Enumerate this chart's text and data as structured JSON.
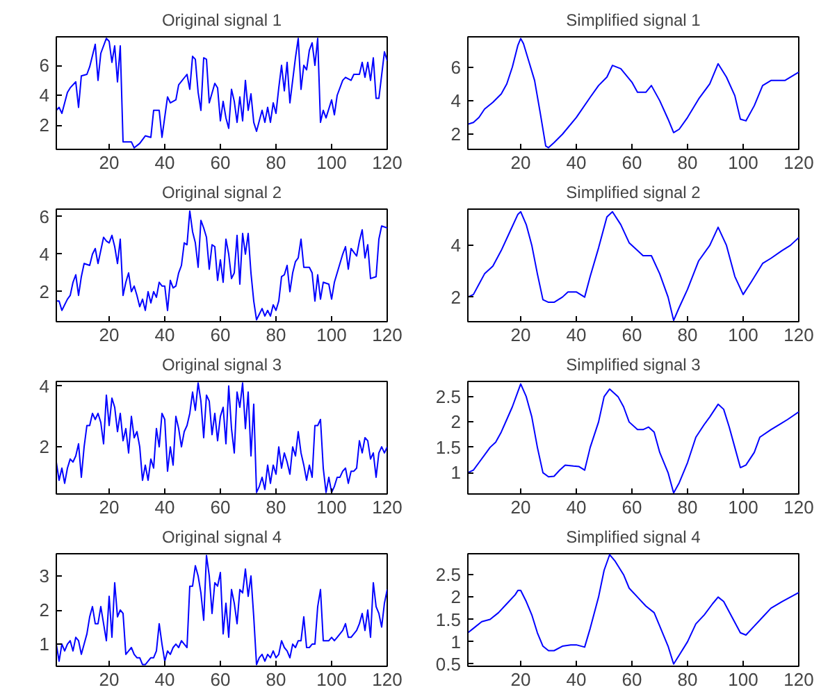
{
  "chart_data": [
    {
      "type": "line",
      "title": "Original signal 1",
      "color": "#0000ff",
      "xlim": [
        1,
        120
      ],
      "xticks": [
        20,
        40,
        60,
        80,
        100,
        120
      ],
      "ylim": [
        0.4,
        7.9
      ],
      "yticks": [
        2,
        4,
        6
      ],
      "x": [
        1,
        2,
        3,
        5,
        6,
        8,
        9,
        10,
        12,
        13,
        15,
        16,
        17,
        19,
        20,
        21,
        22,
        23,
        24,
        25,
        28,
        29,
        31,
        33,
        35,
        36,
        38,
        39,
        41,
        42,
        44,
        45,
        48,
        49,
        50,
        51,
        52,
        53,
        54,
        55,
        56,
        58,
        59,
        60,
        61,
        62,
        63,
        64,
        65,
        66,
        67,
        68,
        69,
        70,
        71,
        72,
        73,
        75,
        76,
        77,
        78,
        79,
        80,
        81,
        82,
        83,
        84,
        85,
        86,
        87,
        88,
        89,
        90,
        91,
        92,
        93,
        94,
        95,
        96,
        97,
        98,
        100,
        101,
        102,
        104,
        105,
        107,
        108,
        110,
        111,
        112,
        113,
        114,
        115,
        116,
        117,
        119,
        120
      ],
      "values": [
        3.0,
        3.2,
        2.8,
        4.2,
        4.5,
        4.9,
        3.2,
        5.3,
        5.4,
        5.9,
        7.4,
        5.0,
        6.8,
        7.8,
        7.6,
        6.2,
        7.3,
        4.9,
        7.3,
        0.9,
        0.9,
        0.5,
        0.8,
        1.3,
        1.2,
        3.0,
        3.0,
        1.2,
        3.9,
        3.5,
        3.7,
        4.7,
        5.4,
        4.4,
        6.6,
        6.4,
        4.2,
        3.0,
        6.5,
        6.4,
        3.5,
        4.8,
        4.5,
        2.3,
        3.6,
        2.5,
        1.8,
        4.4,
        3.6,
        2.2,
        3.9,
        2.3,
        5.0,
        3.0,
        4.1,
        2.2,
        1.6,
        3.0,
        2.2,
        3.2,
        2.2,
        3.5,
        2.8,
        4.5,
        6.0,
        4.3,
        6.2,
        3.5,
        5.0,
        6.5,
        7.8,
        4.4,
        6.0,
        5.7,
        7.0,
        7.5,
        6.0,
        7.8,
        2.2,
        3.0,
        2.5,
        3.7,
        2.7,
        4.0,
        5.0,
        5.2,
        5.0,
        5.4,
        5.4,
        6.2,
        5.2,
        6.2,
        5.0,
        6.5,
        3.8,
        3.8,
        6.9,
        6.3
      ]
    },
    {
      "type": "line",
      "title": "Simplified signal 1",
      "color": "#0000ff",
      "xlim": [
        1,
        120
      ],
      "xticks": [
        20,
        40,
        60,
        80,
        100,
        120
      ],
      "ylim": [
        1.1,
        7.8
      ],
      "yticks": [
        2,
        4,
        6
      ],
      "x": [
        1,
        3,
        5,
        7,
        10,
        13,
        15,
        17,
        19,
        20,
        21,
        23,
        25,
        27,
        29,
        30,
        32,
        35,
        40,
        45,
        48,
        51,
        53,
        56,
        60,
        62,
        65,
        67,
        70,
        73,
        75,
        77,
        80,
        84,
        88,
        91,
        94,
        97,
        99,
        101,
        104,
        107,
        110,
        115,
        118,
        120
      ],
      "values": [
        2.6,
        2.7,
        3.0,
        3.5,
        3.9,
        4.4,
        5.0,
        6.0,
        7.3,
        7.7,
        7.4,
        6.3,
        5.2,
        3.3,
        1.3,
        1.2,
        1.5,
        2.0,
        3.0,
        4.2,
        4.9,
        5.4,
        6.1,
        5.9,
        5.1,
        4.5,
        4.5,
        4.9,
        4.0,
        2.9,
        2.1,
        2.3,
        3.0,
        4.1,
        5.0,
        6.2,
        5.4,
        4.3,
        2.9,
        2.8,
        3.7,
        4.9,
        5.2,
        5.2,
        5.5,
        5.7
      ]
    },
    {
      "type": "line",
      "title": "Original signal 2",
      "color": "#0000ff",
      "xlim": [
        1,
        120
      ],
      "xticks": [
        20,
        40,
        60,
        80,
        100,
        120
      ],
      "ylim": [
        0.4,
        6.4
      ],
      "yticks": [
        2,
        4,
        6
      ],
      "x": [
        1,
        2,
        3,
        5,
        6,
        7,
        8,
        9,
        10,
        11,
        13,
        14,
        15,
        16,
        18,
        19,
        20,
        21,
        22,
        23,
        24,
        25,
        26,
        27,
        28,
        29,
        30,
        31,
        32,
        33,
        34,
        35,
        36,
        37,
        38,
        39,
        40,
        41,
        42,
        43,
        44,
        45,
        46,
        47,
        48,
        49,
        50,
        51,
        52,
        53,
        54,
        55,
        56,
        57,
        58,
        59,
        60,
        61,
        62,
        63,
        64,
        65,
        66,
        67,
        68,
        69,
        70,
        71,
        72,
        73,
        74,
        75,
        76,
        77,
        78,
        79,
        80,
        81,
        82,
        83,
        84,
        85,
        86,
        87,
        88,
        89,
        90,
        92,
        93,
        94,
        95,
        96,
        97,
        99,
        100,
        101,
        103,
        104,
        105,
        106,
        107,
        109,
        110,
        111,
        112,
        113,
        114,
        116,
        117,
        118,
        120
      ],
      "values": [
        1.5,
        1.5,
        1.0,
        1.6,
        1.8,
        2.5,
        2.9,
        1.8,
        2.8,
        3.5,
        3.4,
        4.0,
        4.3,
        3.5,
        4.9,
        4.7,
        4.6,
        5.0,
        4.4,
        3.5,
        4.8,
        1.8,
        2.5,
        3.0,
        2.0,
        2.3,
        1.8,
        1.2,
        1.6,
        1.0,
        2.0,
        1.4,
        2.0,
        1.7,
        2.5,
        2.3,
        2.3,
        1.0,
        2.6,
        2.2,
        2.3,
        3.0,
        3.4,
        4.6,
        4.5,
        6.3,
        5.2,
        4.6,
        3.3,
        5.8,
        5.4,
        4.9,
        3.2,
        4.5,
        4.4,
        2.6,
        3.7,
        2.5,
        4.8,
        4.0,
        2.7,
        3.0,
        5.0,
        2.4,
        5.1,
        4.0,
        5.1,
        3.0,
        1.5,
        0.5,
        0.8,
        1.1,
        0.7,
        1.0,
        0.7,
        1.3,
        1.0,
        1.5,
        2.8,
        2.9,
        3.4,
        2.0,
        3.0,
        3.6,
        3.8,
        4.8,
        3.3,
        3.3,
        3.0,
        1.5,
        2.9,
        1.6,
        2.5,
        2.4,
        1.6,
        2.5,
        3.5,
        4.0,
        4.4,
        3.2,
        4.3,
        3.9,
        4.7,
        5.3,
        3.8,
        4.5,
        2.7,
        2.8,
        4.8,
        5.5,
        5.4
      ]
    },
    {
      "type": "line",
      "title": "Simplified signal 2",
      "color": "#0000ff",
      "xlim": [
        1,
        120
      ],
      "xticks": [
        20,
        40,
        60,
        80,
        100,
        120
      ],
      "ylim": [
        1.05,
        5.4
      ],
      "yticks": [
        2,
        4
      ],
      "x": [
        1,
        3,
        5,
        7,
        10,
        13,
        16,
        19,
        20,
        22,
        24,
        26,
        28,
        30,
        32,
        35,
        37,
        40,
        43,
        45,
        48,
        51,
        53,
        56,
        59,
        62,
        64,
        67,
        70,
        73,
        75,
        77,
        80,
        84,
        88,
        91,
        94,
        97,
        100,
        103,
        107,
        110,
        114,
        117,
        120
      ],
      "values": [
        2.0,
        2.1,
        2.5,
        2.9,
        3.2,
        3.8,
        4.5,
        5.2,
        5.3,
        4.8,
        4.0,
        2.9,
        1.9,
        1.8,
        1.8,
        2.0,
        2.2,
        2.2,
        2.0,
        2.8,
        3.9,
        5.1,
        5.3,
        4.8,
        4.1,
        3.8,
        3.6,
        3.6,
        2.9,
        2.0,
        1.1,
        1.6,
        2.3,
        3.4,
        4.0,
        4.7,
        4.0,
        2.8,
        2.1,
        2.6,
        3.3,
        3.5,
        3.8,
        4.0,
        4.3
      ]
    },
    {
      "type": "line",
      "title": "Original signal 3",
      "color": "#0000ff",
      "xlim": [
        1,
        120
      ],
      "xticks": [
        20,
        40,
        60,
        80,
        100,
        120
      ],
      "ylim": [
        0.45,
        4.15
      ],
      "yticks": [
        2,
        4
      ],
      "x": [
        1,
        2,
        3,
        4,
        5,
        6,
        7,
        8,
        9,
        10,
        11,
        12,
        13,
        14,
        15,
        16,
        17,
        18,
        19,
        20,
        21,
        22,
        23,
        24,
        25,
        26,
        27,
        28,
        29,
        30,
        31,
        32,
        33,
        34,
        35,
        36,
        37,
        38,
        39,
        40,
        41,
        42,
        43,
        44,
        45,
        46,
        47,
        48,
        49,
        50,
        51,
        52,
        53,
        54,
        55,
        56,
        57,
        58,
        59,
        60,
        61,
        62,
        63,
        64,
        65,
        66,
        67,
        68,
        69,
        70,
        71,
        72,
        73,
        74,
        75,
        76,
        77,
        78,
        79,
        80,
        81,
        82,
        83,
        84,
        85,
        86,
        87,
        88,
        89,
        90,
        91,
        92,
        93,
        94,
        95,
        96,
        97,
        98,
        99,
        100,
        101,
        102,
        103,
        104,
        105,
        106,
        107,
        108,
        109,
        110,
        111,
        112,
        113,
        114,
        115,
        116,
        117,
        118,
        119,
        120
      ],
      "values": [
        1.5,
        0.9,
        1.3,
        0.8,
        1.3,
        1.6,
        1.5,
        1.7,
        2.1,
        1.0,
        2.0,
        2.7,
        2.7,
        3.1,
        2.9,
        3.1,
        2.8,
        2.1,
        3.7,
        2.7,
        3.6,
        3.3,
        2.5,
        3.1,
        2.2,
        2.6,
        1.8,
        3.0,
        2.3,
        2.5,
        2.0,
        0.9,
        1.4,
        0.9,
        1.6,
        1.3,
        2.6,
        2.0,
        3.1,
        2.9,
        1.2,
        2.0,
        1.4,
        3.0,
        2.6,
        2.0,
        2.5,
        2.7,
        3.1,
        3.8,
        3.2,
        4.1,
        3.5,
        2.3,
        3.7,
        3.5,
        2.4,
        3.1,
        2.2,
        3.0,
        3.3,
        2.1,
        4.0,
        2.6,
        1.8,
        3.8,
        3.3,
        4.1,
        2.6,
        3.8,
        1.7,
        3.4,
        0.5,
        0.7,
        1.0,
        0.6,
        1.4,
        0.8,
        1.4,
        1.1,
        2.0,
        1.3,
        1.8,
        1.5,
        1.1,
        2.0,
        1.7,
        2.5,
        1.8,
        1.4,
        0.9,
        1.4,
        1.0,
        2.7,
        2.7,
        2.9,
        1.3,
        0.5,
        1.0,
        0.5,
        0.7,
        1.0,
        1.0,
        1.2,
        1.3,
        0.8,
        1.2,
        1.2,
        1.3,
        2.2,
        1.8,
        2.3,
        2.2,
        1.6,
        1.8,
        1.0,
        1.8,
        2.0,
        1.8,
        2.0
      ]
    },
    {
      "type": "line",
      "title": "Simplified signal 3",
      "color": "#0000ff",
      "xlim": [
        1,
        120
      ],
      "xticks": [
        20,
        40,
        60,
        80,
        100,
        120
      ],
      "ylim": [
        0.58,
        2.8
      ],
      "yticks": [
        1,
        1.5,
        2,
        2.5
      ],
      "x": [
        1,
        3,
        5,
        7,
        9,
        11,
        13,
        15,
        17,
        19,
        20,
        22,
        24,
        26,
        28,
        30,
        32,
        34,
        36,
        39,
        41,
        43,
        45,
        48,
        50,
        52,
        55,
        57,
        59,
        62,
        64,
        66,
        68,
        70,
        73,
        75,
        77,
        80,
        83,
        86,
        88,
        91,
        93,
        95,
        97,
        99,
        101,
        104,
        106,
        110,
        113,
        116,
        120
      ],
      "values": [
        1.0,
        1.05,
        1.2,
        1.35,
        1.5,
        1.6,
        1.8,
        2.05,
        2.3,
        2.6,
        2.75,
        2.5,
        2.1,
        1.5,
        1.0,
        0.92,
        0.93,
        1.05,
        1.15,
        1.13,
        1.12,
        1.05,
        1.5,
        2.0,
        2.5,
        2.65,
        2.5,
        2.3,
        2.0,
        1.85,
        1.85,
        1.9,
        1.8,
        1.4,
        1.0,
        0.6,
        0.8,
        1.2,
        1.7,
        1.95,
        2.1,
        2.35,
        2.25,
        1.9,
        1.5,
        1.1,
        1.15,
        1.4,
        1.7,
        1.85,
        1.95,
        2.05,
        2.2
      ]
    },
    {
      "type": "line",
      "title": "Original signal 4",
      "color": "#0000ff",
      "xlim": [
        1,
        120
      ],
      "xticks": [
        20,
        40,
        60,
        80,
        100,
        120
      ],
      "ylim": [
        0.35,
        3.65
      ],
      "yticks": [
        1,
        2,
        3
      ],
      "x": [
        1,
        2,
        3,
        4,
        5,
        6,
        7,
        8,
        9,
        10,
        11,
        12,
        13,
        14,
        15,
        16,
        17,
        18,
        19,
        20,
        21,
        22,
        23,
        24,
        25,
        26,
        27,
        28,
        29,
        30,
        31,
        32,
        33,
        34,
        35,
        36,
        37,
        38,
        39,
        40,
        41,
        42,
        43,
        44,
        45,
        46,
        47,
        48,
        49,
        50,
        51,
        52,
        53,
        54,
        55,
        56,
        57,
        58,
        59,
        60,
        61,
        62,
        63,
        64,
        65,
        66,
        67,
        68,
        69,
        70,
        71,
        72,
        73,
        74,
        75,
        76,
        77,
        78,
        79,
        80,
        81,
        82,
        83,
        84,
        85,
        86,
        87,
        88,
        89,
        90,
        91,
        92,
        93,
        94,
        95,
        96,
        97,
        98,
        99,
        100,
        101,
        102,
        103,
        104,
        105,
        106,
        107,
        108,
        109,
        110,
        111,
        112,
        113,
        114,
        115,
        116,
        117,
        118,
        119,
        120
      ],
      "values": [
        1.0,
        0.5,
        1.0,
        0.8,
        1.0,
        1.1,
        0.8,
        1.2,
        1.1,
        0.7,
        1.0,
        1.3,
        1.8,
        2.1,
        1.6,
        1.6,
        2.1,
        1.6,
        1.1,
        2.4,
        1.2,
        2.8,
        1.8,
        2.0,
        1.9,
        0.7,
        0.8,
        0.9,
        0.7,
        0.6,
        0.6,
        0.4,
        0.4,
        0.5,
        0.6,
        0.6,
        0.8,
        1.6,
        1.0,
        0.5,
        0.8,
        0.7,
        0.9,
        1.0,
        0.9,
        1.1,
        1.0,
        0.9,
        2.7,
        2.7,
        3.3,
        3.0,
        2.5,
        1.7,
        3.6,
        3.0,
        1.9,
        2.8,
        2.7,
        3.1,
        1.3,
        2.2,
        1.2,
        2.6,
        2.2,
        1.6,
        2.6,
        2.5,
        3.2,
        2.4,
        3.0,
        1.8,
        0.4,
        0.6,
        0.7,
        0.5,
        0.7,
        0.6,
        0.8,
        0.6,
        0.7,
        1.1,
        0.9,
        0.8,
        0.6,
        1.0,
        0.9,
        1.1,
        1.1,
        1.8,
        0.9,
        0.9,
        1.0,
        1.0,
        2.1,
        2.6,
        1.1,
        1.1,
        1.1,
        1.2,
        1.1,
        1.2,
        1.3,
        1.4,
        1.6,
        1.2,
        1.2,
        1.3,
        1.4,
        1.6,
        1.9,
        1.4,
        2.0,
        1.2,
        2.8,
        2.1,
        1.9,
        1.5,
        2.2,
        2.6
      ]
    },
    {
      "type": "line",
      "title": "Simplified signal 4",
      "color": "#0000ff",
      "xlim": [
        1,
        120
      ],
      "xticks": [
        20,
        40,
        60,
        80,
        100,
        120
      ],
      "ylim": [
        0.45,
        2.97
      ],
      "yticks": [
        0.5,
        1,
        1.5,
        2,
        2.5
      ],
      "x": [
        1,
        3,
        6,
        9,
        12,
        15,
        18,
        19,
        20,
        22,
        24,
        26,
        28,
        30,
        32,
        35,
        38,
        40,
        43,
        45,
        48,
        50,
        52,
        54,
        57,
        59,
        62,
        65,
        68,
        70,
        73,
        75,
        77,
        80,
        83,
        86,
        89,
        91,
        93,
        96,
        99,
        101,
        104,
        107,
        110,
        114,
        117,
        120
      ],
      "values": [
        1.2,
        1.3,
        1.45,
        1.5,
        1.65,
        1.85,
        2.05,
        2.15,
        2.15,
        1.9,
        1.6,
        1.2,
        0.9,
        0.8,
        0.8,
        0.9,
        0.93,
        0.93,
        0.88,
        1.3,
        2.0,
        2.6,
        2.95,
        2.8,
        2.5,
        2.2,
        2.0,
        1.8,
        1.65,
        1.35,
        0.9,
        0.5,
        0.7,
        1.0,
        1.4,
        1.6,
        1.85,
        2.0,
        1.9,
        1.55,
        1.2,
        1.15,
        1.35,
        1.55,
        1.75,
        1.9,
        2.0,
        2.1
      ]
    }
  ]
}
